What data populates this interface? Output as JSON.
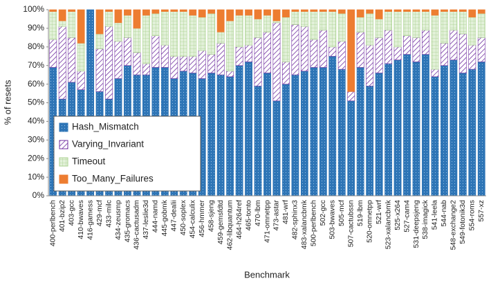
{
  "chart_data": {
    "type": "stacked_bar",
    "xlabel": "Benchmark",
    "ylabel": "% of resets",
    "categories": [
      "400-perlbench",
      "401-bzip2",
      "403-gcc",
      "410-bwaves",
      "416-gamess",
      "429-mcf",
      "433-milc",
      "434-zeusmp",
      "435-gromacs",
      "436-cactusadm",
      "437-leslie3d",
      "444-namd",
      "445-gobmk",
      "447-dealii",
      "450-soplex",
      "454-calculix",
      "456-hmmer",
      "458-sjeng",
      "459-gemsfdtd",
      "462-libquantum",
      "464-h264ref",
      "465-tonto",
      "470-lbm",
      "471-omnetpp",
      "473-astar",
      "481-wrf",
      "482-sphinx3",
      "483-xalancbmk",
      "500-perlbench",
      "502-gcc",
      "503-bwaves",
      "505-mcf",
      "507-cactubssn",
      "519-lbm",
      "520-omnetpp",
      "521-wrf",
      "523-xalancbmk",
      "525-x264",
      "527-cam4",
      "531-deepsjeng",
      "538-imagick",
      "541-leela",
      "544-nab",
      "548-exchange2",
      "549-fotonik3d",
      "554-roms",
      "557-xz"
    ],
    "series": [
      {
        "name": "Hash_Mismatch",
        "color": "#2e75b6",
        "values": [
          69,
          52,
          61,
          57,
          100,
          56,
          52,
          63,
          70,
          65,
          65,
          69,
          69,
          63,
          67,
          66,
          63,
          66,
          65,
          64,
          70,
          72,
          59,
          66,
          51,
          60,
          65,
          67,
          69,
          69,
          75,
          68,
          51,
          69,
          59,
          66,
          71,
          73,
          76,
          72,
          76,
          64,
          70,
          73,
          66,
          68,
          72
        ]
      },
      {
        "name": "Varying_Invariant",
        "color": "#7030a0",
        "values": [
          15,
          39,
          24,
          10,
          0,
          23,
          39,
          20,
          15,
          12,
          6,
          17,
          12,
          12,
          8,
          9,
          15,
          10,
          17,
          3,
          10,
          9,
          26,
          22,
          42,
          12,
          27,
          24,
          15,
          20,
          5,
          15,
          5,
          19,
          22,
          19,
          18,
          7,
          10,
          13,
          13,
          4,
          12,
          16,
          21,
          13,
          13
        ]
      },
      {
        "name": "Timeout",
        "color": "#a9d18e",
        "values": [
          15,
          3,
          14,
          15,
          0,
          8,
          8,
          10,
          12,
          13,
          26,
          12,
          18,
          24,
          24,
          22,
          18,
          22,
          6,
          27,
          17,
          16,
          10,
          9,
          1,
          24,
          7,
          8,
          15,
          10,
          19,
          15,
          0,
          8,
          17,
          10,
          10,
          19,
          13,
          14,
          10,
          29,
          17,
          10,
          12,
          15,
          13
        ]
      },
      {
        "name": "Too_Many_Failures",
        "color": "#ed7d31",
        "values": [
          1,
          6,
          1,
          18,
          0,
          13,
          1,
          7,
          3,
          10,
          3,
          2,
          1,
          1,
          1,
          3,
          4,
          2,
          12,
          6,
          3,
          3,
          5,
          3,
          6,
          4,
          1,
          1,
          1,
          1,
          1,
          2,
          44,
          4,
          2,
          5,
          1,
          1,
          1,
          1,
          1,
          3,
          1,
          1,
          1,
          4,
          2
        ]
      }
    ],
    "ylim": [
      0,
      100
    ],
    "yticks": [
      {
        "value": 0,
        "label": "0%"
      },
      {
        "value": 10,
        "label": "10%"
      },
      {
        "value": 20,
        "label": "20%"
      },
      {
        "value": 30,
        "label": "30%"
      },
      {
        "value": 40,
        "label": "40%"
      },
      {
        "value": 50,
        "label": "50%"
      },
      {
        "value": 60,
        "label": "60%"
      },
      {
        "value": 70,
        "label": "70%"
      },
      {
        "value": 80,
        "label": "80%"
      },
      {
        "value": 90,
        "label": "90%"
      },
      {
        "value": 100,
        "label": "100%"
      }
    ],
    "legend": "lower left"
  }
}
